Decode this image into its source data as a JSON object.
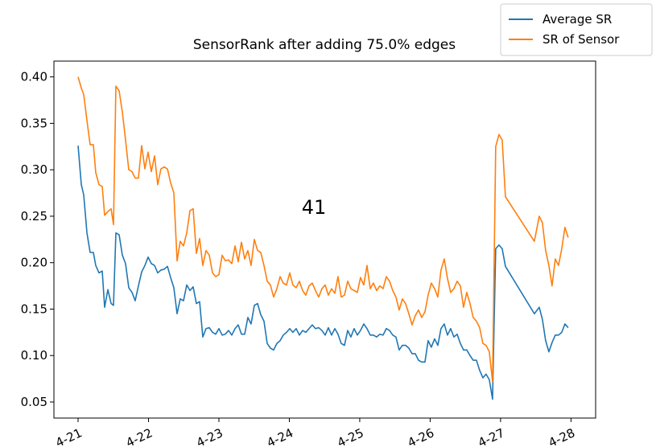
{
  "chart_data": {
    "type": "line",
    "title": "SensorRank after adding 75.0% edges",
    "annotation": "41",
    "x": [
      21.0,
      21.046,
      21.08,
      21.126,
      21.171,
      21.217,
      21.251,
      21.297,
      21.343,
      21.377,
      21.423,
      21.469,
      21.503,
      21.537,
      21.583,
      21.629,
      21.674,
      21.72,
      21.766,
      21.811,
      21.857,
      21.903,
      21.949,
      21.994,
      22.04,
      22.086,
      22.131,
      22.177,
      22.223,
      22.269,
      22.314,
      22.36,
      22.406,
      22.451,
      22.497,
      22.543,
      22.589,
      22.634,
      22.68,
      22.726,
      22.771,
      22.817,
      22.863,
      22.909,
      22.954,
      23.0,
      23.046,
      23.091,
      23.137,
      23.183,
      23.229,
      23.274,
      23.32,
      23.366,
      23.411,
      23.457,
      23.503,
      23.549,
      23.594,
      23.64,
      23.686,
      23.731,
      23.777,
      23.823,
      23.869,
      23.914,
      23.96,
      24.006,
      24.051,
      24.097,
      24.143,
      24.189,
      24.234,
      24.28,
      24.326,
      24.371,
      24.417,
      24.463,
      24.509,
      24.554,
      24.6,
      24.646,
      24.691,
      24.737,
      24.783,
      24.829,
      24.874,
      24.92,
      24.966,
      25.011,
      25.057,
      25.103,
      25.149,
      25.194,
      25.24,
      25.286,
      25.331,
      25.377,
      25.423,
      25.469,
      25.514,
      25.56,
      25.606,
      25.651,
      25.697,
      25.743,
      25.789,
      25.834,
      25.88,
      25.926,
      25.971,
      26.017,
      26.063,
      26.109,
      26.154,
      26.2,
      26.246,
      26.291,
      26.337,
      26.383,
      26.429,
      26.474,
      26.52,
      26.566,
      26.611,
      26.657,
      26.703,
      26.749,
      26.794,
      26.84,
      26.886,
      26.931,
      26.977,
      27.023,
      27.069,
      27.48,
      27.549,
      27.594,
      27.64,
      27.686,
      27.731,
      27.777,
      27.823,
      27.869,
      27.914,
      27.96
    ],
    "series": [
      {
        "name": "Average SR",
        "color": "#1f77b4",
        "values": [
          0.326,
          0.284,
          0.273,
          0.232,
          0.211,
          0.211,
          0.197,
          0.189,
          0.191,
          0.152,
          0.171,
          0.156,
          0.154,
          0.232,
          0.23,
          0.208,
          0.199,
          0.173,
          0.168,
          0.159,
          0.175,
          0.19,
          0.197,
          0.206,
          0.199,
          0.197,
          0.189,
          0.192,
          0.193,
          0.196,
          0.184,
          0.173,
          0.145,
          0.161,
          0.159,
          0.176,
          0.17,
          0.174,
          0.156,
          0.158,
          0.12,
          0.129,
          0.13,
          0.125,
          0.123,
          0.129,
          0.122,
          0.123,
          0.127,
          0.122,
          0.129,
          0.133,
          0.123,
          0.123,
          0.141,
          0.134,
          0.154,
          0.156,
          0.144,
          0.137,
          0.113,
          0.108,
          0.106,
          0.113,
          0.116,
          0.122,
          0.125,
          0.129,
          0.125,
          0.129,
          0.122,
          0.127,
          0.125,
          0.129,
          0.133,
          0.129,
          0.13,
          0.127,
          0.122,
          0.13,
          0.122,
          0.129,
          0.123,
          0.113,
          0.111,
          0.127,
          0.12,
          0.129,
          0.122,
          0.127,
          0.134,
          0.129,
          0.122,
          0.122,
          0.12,
          0.123,
          0.122,
          0.129,
          0.127,
          0.122,
          0.12,
          0.106,
          0.111,
          0.111,
          0.108,
          0.102,
          0.102,
          0.095,
          0.093,
          0.093,
          0.116,
          0.109,
          0.118,
          0.111,
          0.129,
          0.134,
          0.122,
          0.129,
          0.12,
          0.123,
          0.113,
          0.106,
          0.106,
          0.1,
          0.095,
          0.095,
          0.084,
          0.076,
          0.08,
          0.074,
          0.053,
          0.215,
          0.219,
          0.215,
          0.196,
          0.145,
          0.152,
          0.139,
          0.116,
          0.104,
          0.114,
          0.122,
          0.122,
          0.125,
          0.134,
          0.13
        ]
      },
      {
        "name": "SR of Sensor",
        "color": "#ff7f0e",
        "values": [
          0.4,
          0.388,
          0.381,
          0.353,
          0.327,
          0.327,
          0.297,
          0.284,
          0.282,
          0.251,
          0.255,
          0.258,
          0.241,
          0.39,
          0.385,
          0.362,
          0.332,
          0.3,
          0.298,
          0.291,
          0.291,
          0.326,
          0.301,
          0.319,
          0.298,
          0.315,
          0.284,
          0.301,
          0.303,
          0.301,
          0.286,
          0.275,
          0.202,
          0.223,
          0.218,
          0.232,
          0.256,
          0.258,
          0.21,
          0.226,
          0.197,
          0.213,
          0.208,
          0.189,
          0.185,
          0.187,
          0.208,
          0.202,
          0.203,
          0.199,
          0.218,
          0.201,
          0.222,
          0.204,
          0.213,
          0.197,
          0.225,
          0.213,
          0.211,
          0.197,
          0.18,
          0.176,
          0.163,
          0.172,
          0.185,
          0.178,
          0.176,
          0.189,
          0.176,
          0.173,
          0.18,
          0.17,
          0.165,
          0.175,
          0.178,
          0.17,
          0.163,
          0.172,
          0.176,
          0.165,
          0.172,
          0.167,
          0.185,
          0.163,
          0.165,
          0.18,
          0.172,
          0.17,
          0.168,
          0.184,
          0.176,
          0.197,
          0.172,
          0.178,
          0.17,
          0.175,
          0.172,
          0.185,
          0.18,
          0.17,
          0.163,
          0.149,
          0.161,
          0.156,
          0.145,
          0.133,
          0.143,
          0.149,
          0.141,
          0.147,
          0.165,
          0.178,
          0.172,
          0.163,
          0.192,
          0.204,
          0.183,
          0.168,
          0.172,
          0.18,
          0.175,
          0.152,
          0.168,
          0.156,
          0.141,
          0.137,
          0.13,
          0.113,
          0.111,
          0.104,
          0.072,
          0.325,
          0.338,
          0.332,
          0.271,
          0.223,
          0.25,
          0.243,
          0.213,
          0.197,
          0.175,
          0.204,
          0.197,
          0.215,
          0.238,
          0.227
        ]
      }
    ],
    "xlim": [
      20.657,
      28.35
    ],
    "ylim": [
      0.0327,
      0.417
    ],
    "xticks": [
      {
        "value": 21,
        "label": "4-21"
      },
      {
        "value": 22,
        "label": "4-22"
      },
      {
        "value": 23,
        "label": "4-23"
      },
      {
        "value": 24,
        "label": "4-24"
      },
      {
        "value": 25,
        "label": "4-25"
      },
      {
        "value": 26,
        "label": "4-26"
      },
      {
        "value": 27,
        "label": "4-27"
      },
      {
        "value": 28,
        "label": "4-28"
      }
    ],
    "yticks": [
      {
        "value": 0.05,
        "label": "0.05"
      },
      {
        "value": 0.1,
        "label": "0.10"
      },
      {
        "value": 0.15,
        "label": "0.15"
      },
      {
        "value": 0.2,
        "label": "0.20"
      },
      {
        "value": 0.25,
        "label": "0.25"
      },
      {
        "value": 0.3,
        "label": "0.30"
      },
      {
        "value": 0.35,
        "label": "0.35"
      },
      {
        "value": 0.4,
        "label": "0.40"
      }
    ],
    "legend": "upper right"
  }
}
